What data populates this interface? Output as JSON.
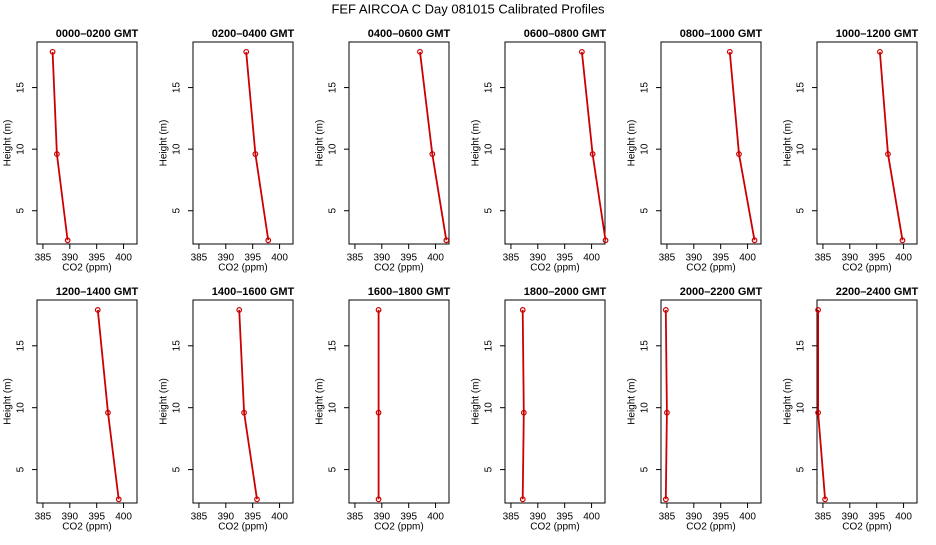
{
  "title": "FEF AIRCOA C  Day 081015  Calibrated Profiles",
  "chart_data": [
    {
      "type": "line",
      "title": "0000–0200 GMT",
      "x_label": "CO2 (ppm)",
      "y_label": "Height (m)",
      "color": "#cc0000",
      "xlim": [
        383.9,
        402.5
      ],
      "ylim": [
        2.3,
        18.7
      ],
      "xticks": [
        385,
        390,
        395,
        400
      ],
      "yticks": [
        5,
        10,
        15
      ],
      "x": [
        386.8,
        387.6,
        389.6
      ],
      "values": [
        17.9,
        9.6,
        2.6
      ]
    },
    {
      "type": "line",
      "title": "0200–0400 GMT",
      "x_label": "CO2 (ppm)",
      "y_label": "Height (m)",
      "color": "#cc0000",
      "xlim": [
        383.9,
        402.5
      ],
      "ylim": [
        2.3,
        18.7
      ],
      "xticks": [
        385,
        390,
        395,
        400
      ],
      "yticks": [
        5,
        10,
        15
      ],
      "x": [
        393.8,
        395.5,
        397.9
      ],
      "values": [
        17.9,
        9.6,
        2.6
      ]
    },
    {
      "type": "line",
      "title": "0400–0600 GMT",
      "x_label": "CO2 (ppm)",
      "y_label": "Height (m)",
      "color": "#cc0000",
      "xlim": [
        383.9,
        402.5
      ],
      "ylim": [
        2.3,
        18.7
      ],
      "xticks": [
        385,
        390,
        395,
        400
      ],
      "yticks": [
        5,
        10,
        15
      ],
      "x": [
        397.1,
        399.4,
        402.0
      ],
      "values": [
        17.9,
        9.6,
        2.6
      ]
    },
    {
      "type": "line",
      "title": "0600–0800 GMT",
      "x_label": "CO2 (ppm)",
      "y_label": "Height (m)",
      "color": "#cc0000",
      "xlim": [
        383.9,
        402.5
      ],
      "ylim": [
        2.3,
        18.7
      ],
      "xticks": [
        385,
        390,
        395,
        400
      ],
      "yticks": [
        5,
        10,
        15
      ],
      "x": [
        398.2,
        400.2,
        402.6
      ],
      "values": [
        17.9,
        9.6,
        2.6
      ]
    },
    {
      "type": "line",
      "title": "0800–1000 GMT",
      "x_label": "CO2 (ppm)",
      "y_label": "Height (m)",
      "color": "#cc0000",
      "xlim": [
        383.9,
        402.5
      ],
      "ylim": [
        2.3,
        18.7
      ],
      "xticks": [
        385,
        390,
        395,
        400
      ],
      "yticks": [
        5,
        10,
        15
      ],
      "x": [
        396.7,
        398.4,
        401.3
      ],
      "values": [
        17.9,
        9.6,
        2.6
      ]
    },
    {
      "type": "line",
      "title": "1000–1200 GMT",
      "x_label": "CO2 (ppm)",
      "y_label": "Height (m)",
      "color": "#cc0000",
      "xlim": [
        383.9,
        402.5
      ],
      "ylim": [
        2.3,
        18.7
      ],
      "xticks": [
        385,
        390,
        395,
        400
      ],
      "yticks": [
        5,
        10,
        15
      ],
      "x": [
        395.6,
        397.1,
        399.8
      ],
      "values": [
        17.9,
        9.6,
        2.6
      ]
    },
    {
      "type": "line",
      "title": "1200–1400 GMT",
      "x_label": "CO2 (ppm)",
      "y_label": "Height (m)",
      "color": "#cc0000",
      "xlim": [
        383.9,
        402.5
      ],
      "ylim": [
        2.3,
        18.7
      ],
      "xticks": [
        385,
        390,
        395,
        400
      ],
      "yticks": [
        5,
        10,
        15
      ],
      "x": [
        395.2,
        397.1,
        399.1
      ],
      "values": [
        17.9,
        9.6,
        2.6
      ]
    },
    {
      "type": "line",
      "title": "1400–1600 GMT",
      "x_label": "CO2 (ppm)",
      "y_label": "Height (m)",
      "color": "#cc0000",
      "xlim": [
        383.9,
        402.5
      ],
      "ylim": [
        2.3,
        18.7
      ],
      "xticks": [
        385,
        390,
        395,
        400
      ],
      "yticks": [
        5,
        10,
        15
      ],
      "x": [
        392.5,
        393.4,
        395.8
      ],
      "values": [
        17.9,
        9.6,
        2.6
      ]
    },
    {
      "type": "line",
      "title": "1600–1800 GMT",
      "x_label": "CO2 (ppm)",
      "y_label": "Height (m)",
      "color": "#cc0000",
      "xlim": [
        383.9,
        402.5
      ],
      "ylim": [
        2.3,
        18.7
      ],
      "xticks": [
        385,
        390,
        395,
        400
      ],
      "yticks": [
        5,
        10,
        15
      ],
      "x": [
        389.4,
        389.4,
        389.4
      ],
      "values": [
        17.9,
        9.6,
        2.6
      ]
    },
    {
      "type": "line",
      "title": "1800–2000 GMT",
      "x_label": "CO2 (ppm)",
      "y_label": "Height (m)",
      "color": "#cc0000",
      "xlim": [
        383.9,
        402.5
      ],
      "ylim": [
        2.3,
        18.7
      ],
      "xticks": [
        385,
        390,
        395,
        400
      ],
      "yticks": [
        5,
        10,
        15
      ],
      "x": [
        387.2,
        387.4,
        387.2
      ],
      "values": [
        17.9,
        9.6,
        2.6
      ]
    },
    {
      "type": "line",
      "title": "2000–2200 GMT",
      "x_label": "CO2 (ppm)",
      "y_label": "Height (m)",
      "color": "#cc0000",
      "xlim": [
        383.9,
        402.5
      ],
      "ylim": [
        2.3,
        18.7
      ],
      "xticks": [
        385,
        390,
        395,
        400
      ],
      "yticks": [
        5,
        10,
        15
      ],
      "x": [
        384.8,
        385.0,
        384.8
      ],
      "values": [
        17.9,
        9.6,
        2.6
      ]
    },
    {
      "type": "line",
      "title": "2200–2400 GMT",
      "x_label": "CO2 (ppm)",
      "y_label": "Height (m)",
      "color": "#cc0000",
      "xlim": [
        383.9,
        402.5
      ],
      "ylim": [
        2.3,
        18.7
      ],
      "xticks": [
        385,
        390,
        395,
        400
      ],
      "yticks": [
        5,
        10,
        15
      ],
      "x": [
        384.1,
        384.1,
        385.4
      ],
      "values": [
        17.9,
        9.6,
        2.6
      ]
    }
  ]
}
